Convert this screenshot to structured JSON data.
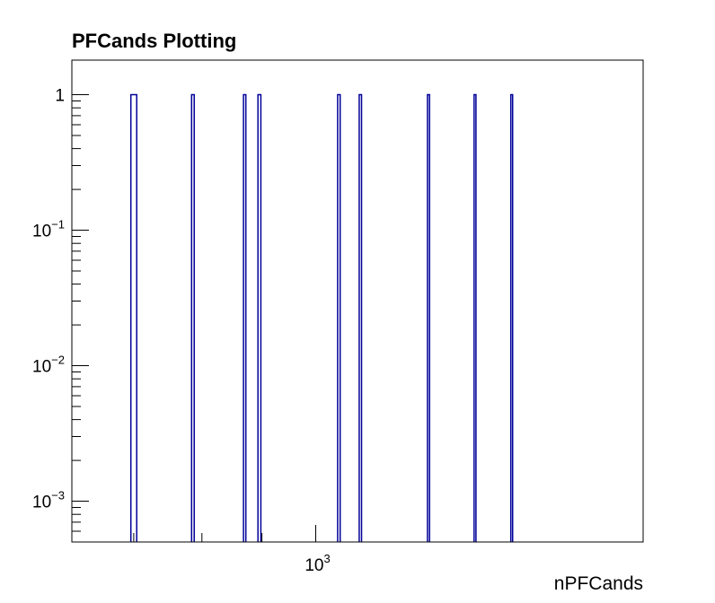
{
  "chart_data": {
    "type": "bar",
    "title": "PFCands Plotting",
    "xlabel": "nPFCands",
    "ylabel": "",
    "x_scale": "log",
    "y_scale": "log",
    "xlim": [
      620,
      1900
    ],
    "ylim": [
      0.0005,
      1.8
    ],
    "grid": false,
    "legend": "none",
    "bar_color": "#000099",
    "series": [
      {
        "bins": [
          {
            "x0": 696,
            "x1": 704,
            "value": 1
          },
          {
            "x0": 784,
            "x1": 788,
            "value": 1
          },
          {
            "x0": 868,
            "x1": 872,
            "value": 1
          },
          {
            "x0": 893,
            "x1": 898,
            "value": 1
          },
          {
            "x0": 1044,
            "x1": 1049,
            "value": 1
          },
          {
            "x0": 1089,
            "x1": 1094,
            "value": 1
          },
          {
            "x0": 1245,
            "x1": 1250,
            "value": 1
          },
          {
            "x0": 1364,
            "x1": 1369,
            "value": 1
          },
          {
            "x0": 1466,
            "x1": 1471,
            "value": 1
          }
        ]
      }
    ],
    "y_tick_labels": [
      {
        "value": 1,
        "base": "1",
        "exp": ""
      },
      {
        "value": 0.1,
        "base": "10",
        "exp": "−1"
      },
      {
        "value": 0.01,
        "base": "10",
        "exp": "−2"
      },
      {
        "value": 0.001,
        "base": "10",
        "exp": "−3"
      }
    ],
    "x_tick_labels": [
      {
        "value": 1000,
        "base": "10",
        "exp": "3"
      }
    ]
  }
}
